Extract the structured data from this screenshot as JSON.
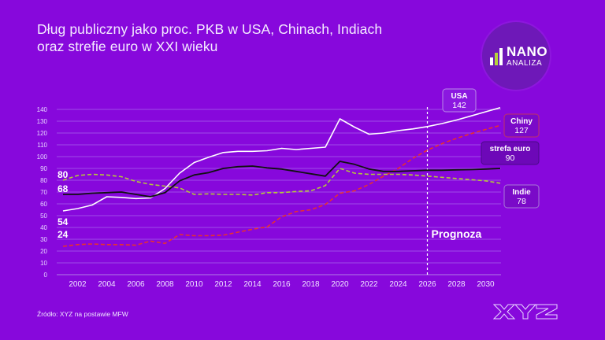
{
  "title_line1": "Dług publiczny jako proc. PKB w USA, Chinach, Indiach",
  "title_line2": "oraz strefie euro w XXI wieku",
  "logo": {
    "line1": "NANO",
    "line2": "ANALIZA",
    "icon": "bar-chart-icon"
  },
  "source": "Źródło:  XYZ na postawie MFW",
  "brand": "XYZ",
  "colors": {
    "background": "#8708dc",
    "usa": "#ffffff",
    "china": "#e8312e",
    "euro": "#111111",
    "india": "#b5c83a"
  },
  "chart_data": {
    "type": "line",
    "title": "Dług publiczny jako proc. PKB w USA, Chinach, Indiach oraz strefie euro w XXI wieku",
    "xlabel": "",
    "ylabel": "",
    "ylim": [
      0,
      140
    ],
    "xlim": [
      2001,
      2031
    ],
    "yticks": [
      0,
      10,
      20,
      30,
      40,
      50,
      60,
      70,
      80,
      90,
      100,
      110,
      120,
      130,
      140
    ],
    "xticks": [
      2002,
      2004,
      2006,
      2008,
      2010,
      2012,
      2014,
      2016,
      2018,
      2020,
      2022,
      2024,
      2026,
      2028,
      2030
    ],
    "grid": true,
    "forecast_start": 2026,
    "forecast_label": "Prognoza",
    "x": [
      2001,
      2002,
      2003,
      2004,
      2005,
      2006,
      2007,
      2008,
      2009,
      2010,
      2011,
      2012,
      2013,
      2014,
      2015,
      2016,
      2017,
      2018,
      2019,
      2020,
      2021,
      2022,
      2023,
      2024,
      2025,
      2026,
      2027,
      2028,
      2029,
      2030,
      2031
    ],
    "series": [
      {
        "name": "USA",
        "key": "usa",
        "style": "solid",
        "start_label": "54",
        "end_label": "142",
        "values": [
          54,
          56,
          59,
          66,
          65.5,
          64.5,
          65,
          73,
          86,
          95,
          99.5,
          103.5,
          104.5,
          104.5,
          105,
          107,
          106,
          107,
          108,
          132,
          125,
          119,
          120,
          122,
          123.5,
          125.5,
          128,
          131,
          134.5,
          138,
          141.5
        ]
      },
      {
        "name": "Chiny",
        "key": "china",
        "style": "dashed",
        "start_label": "24",
        "end_label": "127",
        "values": [
          24,
          25.5,
          26,
          25.5,
          25.5,
          25,
          28.5,
          26.5,
          34,
          33,
          33,
          33.5,
          36,
          38.5,
          40.5,
          49,
          53.5,
          55,
          59.5,
          69,
          71,
          76.5,
          83.5,
          90,
          98.5,
          105.5,
          111,
          115.5,
          119.5,
          123,
          126.5
        ]
      },
      {
        "name": "strefa euro",
        "key": "euro",
        "style": "solid",
        "start_label": "68",
        "end_label": "90",
        "values": [
          68,
          68,
          69,
          69.5,
          70,
          68,
          66,
          69.5,
          79.5,
          84.5,
          86.5,
          90,
          91.5,
          92,
          90.5,
          89.5,
          87.5,
          85.5,
          83.5,
          96,
          93.5,
          89.5,
          87.5,
          87.5,
          88,
          88.5,
          88.5,
          88.8,
          89,
          89.5,
          90
        ]
      },
      {
        "name": "Indie",
        "key": "india",
        "style": "dashed",
        "start_label": "80",
        "end_label": "78",
        "values": [
          80,
          84,
          85,
          84.5,
          83,
          79,
          76.5,
          75,
          73.5,
          68,
          68.5,
          68,
          68,
          67.5,
          69.5,
          69.5,
          70.5,
          71,
          75.5,
          90,
          86,
          85,
          85,
          85,
          84.5,
          83.5,
          82.5,
          81.5,
          80.5,
          79.5,
          77.5
        ]
      }
    ]
  }
}
